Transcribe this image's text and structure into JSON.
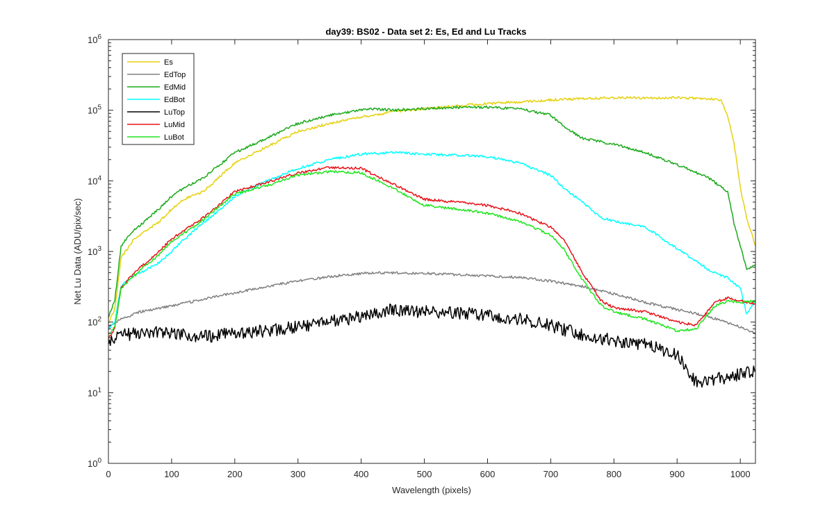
{
  "chart_data": {
    "type": "line",
    "title": "day39: BS02 - Data set 2: Es, Ed and Lu Tracks",
    "xlabel": "Wavelength (pixels)",
    "ylabel": "Net Lu Data (ADU/pix/sec)",
    "xlim": [
      0,
      1024
    ],
    "ylim": [
      1,
      1000000
    ],
    "yscale": "log",
    "x_ticks": [
      0,
      100,
      200,
      300,
      400,
      500,
      600,
      700,
      800,
      900,
      1000
    ],
    "y_ticks": [
      {
        "base": "10",
        "exp": "0",
        "value": 1
      },
      {
        "base": "10",
        "exp": "1",
        "value": 10
      },
      {
        "base": "10",
        "exp": "2",
        "value": 100
      },
      {
        "base": "10",
        "exp": "3",
        "value": 1000
      },
      {
        "base": "10",
        "exp": "4",
        "value": 10000
      },
      {
        "base": "10",
        "exp": "5",
        "value": 100000
      },
      {
        "base": "10",
        "exp": "6",
        "value": 1000000
      }
    ],
    "grid": false,
    "legend_position": "top-left",
    "series": [
      {
        "name": "Es",
        "color": "#E5D10E",
        "points": [
          [
            0,
            100
          ],
          [
            10,
            150
          ],
          [
            20,
            800
          ],
          [
            40,
            1500
          ],
          [
            60,
            2000
          ],
          [
            80,
            2600
          ],
          [
            100,
            4000
          ],
          [
            120,
            5500
          ],
          [
            150,
            7000
          ],
          [
            200,
            18000
          ],
          [
            250,
            30000
          ],
          [
            300,
            50000
          ],
          [
            350,
            65000
          ],
          [
            400,
            80000
          ],
          [
            420,
            85000
          ],
          [
            450,
            95000
          ],
          [
            500,
            105000
          ],
          [
            550,
            115000
          ],
          [
            600,
            125000
          ],
          [
            650,
            130000
          ],
          [
            700,
            140000
          ],
          [
            750,
            145000
          ],
          [
            800,
            150000
          ],
          [
            850,
            150000
          ],
          [
            900,
            150000
          ],
          [
            950,
            145000
          ],
          [
            970,
            140000
          ],
          [
            980,
            80000
          ],
          [
            990,
            35000
          ],
          [
            1000,
            8000
          ],
          [
            1010,
            3000
          ],
          [
            1024,
            1200
          ]
        ]
      },
      {
        "name": "EdTop",
        "color": "#808080",
        "points": [
          [
            0,
            85
          ],
          [
            20,
            110
          ],
          [
            50,
            140
          ],
          [
            100,
            170
          ],
          [
            150,
            210
          ],
          [
            200,
            260
          ],
          [
            250,
            320
          ],
          [
            300,
            380
          ],
          [
            350,
            440
          ],
          [
            400,
            490
          ],
          [
            430,
            500
          ],
          [
            500,
            490
          ],
          [
            550,
            470
          ],
          [
            600,
            450
          ],
          [
            650,
            430
          ],
          [
            700,
            380
          ],
          [
            750,
            320
          ],
          [
            800,
            250
          ],
          [
            850,
            190
          ],
          [
            900,
            150
          ],
          [
            950,
            120
          ],
          [
            1000,
            85
          ],
          [
            1024,
            70
          ]
        ]
      },
      {
        "name": "EdMid",
        "color": "#1AA91A",
        "points": [
          [
            0,
            120
          ],
          [
            10,
            200
          ],
          [
            20,
            1200
          ],
          [
            40,
            2000
          ],
          [
            60,
            2800
          ],
          [
            80,
            4000
          ],
          [
            100,
            6000
          ],
          [
            120,
            8000
          ],
          [
            150,
            11000
          ],
          [
            200,
            25000
          ],
          [
            250,
            40000
          ],
          [
            300,
            65000
          ],
          [
            350,
            85000
          ],
          [
            400,
            100000
          ],
          [
            420,
            105000
          ],
          [
            450,
            100000
          ],
          [
            500,
            105000
          ],
          [
            550,
            110000
          ],
          [
            600,
            110000
          ],
          [
            650,
            105000
          ],
          [
            700,
            85000
          ],
          [
            720,
            60000
          ],
          [
            750,
            40000
          ],
          [
            800,
            33000
          ],
          [
            850,
            25000
          ],
          [
            900,
            17000
          ],
          [
            950,
            11000
          ],
          [
            980,
            7000
          ],
          [
            990,
            2500
          ],
          [
            1000,
            1200
          ],
          [
            1010,
            550
          ],
          [
            1024,
            650
          ]
        ]
      },
      {
        "name": "EdBot",
        "color": "#00FFFF",
        "points": [
          [
            0,
            80
          ],
          [
            10,
            100
          ],
          [
            20,
            330
          ],
          [
            40,
            450
          ],
          [
            60,
            550
          ],
          [
            80,
            700
          ],
          [
            100,
            1000
          ],
          [
            120,
            1500
          ],
          [
            150,
            2500
          ],
          [
            200,
            6000
          ],
          [
            250,
            10000
          ],
          [
            300,
            15000
          ],
          [
            350,
            20000
          ],
          [
            400,
            24000
          ],
          [
            450,
            25000
          ],
          [
            500,
            24000
          ],
          [
            550,
            23000
          ],
          [
            600,
            22000
          ],
          [
            650,
            18000
          ],
          [
            700,
            12000
          ],
          [
            720,
            8000
          ],
          [
            750,
            5000
          ],
          [
            780,
            3000
          ],
          [
            800,
            2700
          ],
          [
            850,
            2200
          ],
          [
            900,
            1100
          ],
          [
            950,
            550
          ],
          [
            980,
            420
          ],
          [
            1000,
            300
          ],
          [
            1010,
            130
          ],
          [
            1024,
            200
          ]
        ]
      },
      {
        "name": "LuTop",
        "color": "#000000",
        "points": [
          [
            0,
            55
          ],
          [
            20,
            65
          ],
          [
            50,
            70
          ],
          [
            100,
            72
          ],
          [
            150,
            62
          ],
          [
            200,
            70
          ],
          [
            250,
            75
          ],
          [
            300,
            85
          ],
          [
            350,
            100
          ],
          [
            400,
            120
          ],
          [
            450,
            150
          ],
          [
            500,
            140
          ],
          [
            550,
            135
          ],
          [
            600,
            125
          ],
          [
            650,
            110
          ],
          [
            700,
            90
          ],
          [
            750,
            65
          ],
          [
            800,
            55
          ],
          [
            850,
            48
          ],
          [
            900,
            35
          ],
          [
            930,
            14
          ],
          [
            950,
            15
          ],
          [
            1000,
            18
          ],
          [
            1024,
            20
          ]
        ]
      },
      {
        "name": "LuMid",
        "color": "#E6141A",
        "points": [
          [
            0,
            60
          ],
          [
            10,
            80
          ],
          [
            20,
            300
          ],
          [
            40,
            500
          ],
          [
            60,
            700
          ],
          [
            80,
            1000
          ],
          [
            100,
            1500
          ],
          [
            120,
            2000
          ],
          [
            150,
            3000
          ],
          [
            200,
            7000
          ],
          [
            250,
            9500
          ],
          [
            300,
            13000
          ],
          [
            350,
            15500
          ],
          [
            400,
            15000
          ],
          [
            450,
            9000
          ],
          [
            500,
            5500
          ],
          [
            550,
            5000
          ],
          [
            600,
            4500
          ],
          [
            650,
            3500
          ],
          [
            700,
            2200
          ],
          [
            720,
            1500
          ],
          [
            750,
            500
          ],
          [
            780,
            200
          ],
          [
            800,
            160
          ],
          [
            850,
            140
          ],
          [
            900,
            100
          ],
          [
            930,
            90
          ],
          [
            960,
            190
          ],
          [
            980,
            220
          ],
          [
            1000,
            200
          ],
          [
            1024,
            180
          ]
        ]
      },
      {
        "name": "LuBot",
        "color": "#1EE61E",
        "points": [
          [
            0,
            65
          ],
          [
            10,
            85
          ],
          [
            20,
            300
          ],
          [
            40,
            450
          ],
          [
            60,
            650
          ],
          [
            80,
            900
          ],
          [
            100,
            1400
          ],
          [
            120,
            1800
          ],
          [
            150,
            2800
          ],
          [
            200,
            6500
          ],
          [
            250,
            8500
          ],
          [
            300,
            12000
          ],
          [
            350,
            13500
          ],
          [
            400,
            13000
          ],
          [
            450,
            8000
          ],
          [
            500,
            4500
          ],
          [
            550,
            4000
          ],
          [
            600,
            3500
          ],
          [
            650,
            2700
          ],
          [
            700,
            1700
          ],
          [
            720,
            1100
          ],
          [
            750,
            400
          ],
          [
            780,
            170
          ],
          [
            800,
            140
          ],
          [
            850,
            110
          ],
          [
            900,
            75
          ],
          [
            930,
            80
          ],
          [
            960,
            170
          ],
          [
            980,
            200
          ],
          [
            1000,
            190
          ],
          [
            1024,
            200
          ]
        ]
      }
    ]
  }
}
